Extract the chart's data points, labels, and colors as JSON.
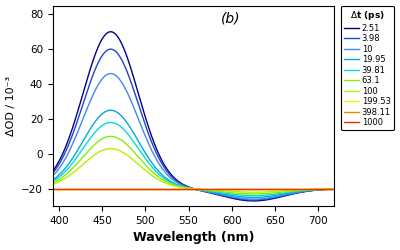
{
  "title": "(b)",
  "xlabel": "Wavelength (nm)",
  "ylabel": "ΔOD / 10⁻³",
  "xlim": [
    393,
    718
  ],
  "ylim": [
    -30,
    85
  ],
  "yticks": [
    -20,
    0,
    20,
    40,
    60,
    80
  ],
  "xticks": [
    400,
    450,
    500,
    550,
    600,
    650,
    700
  ],
  "background_color": "#ffffff",
  "legend_title": "Δt (ps)",
  "times": [
    2.51,
    3.98,
    10,
    19.95,
    39.81,
    63.1,
    100,
    199.53,
    398.11,
    1000
  ],
  "colors": [
    "#00008B",
    "#2244CC",
    "#4488EE",
    "#00AADD",
    "#00DDDD",
    "#88EE00",
    "#BBEE00",
    "#EEEE00",
    "#EE8800",
    "#EE3300"
  ],
  "baseline": -20,
  "peak_amplitudes_above_baseline": [
    90,
    80,
    66,
    45,
    38,
    30,
    23,
    0,
    0,
    0
  ],
  "trough_amplitudes_below_baseline": [
    -7,
    -6.5,
    -6,
    -5,
    -4,
    -3,
    -2,
    0,
    0,
    0
  ],
  "peak_wavelength": 460,
  "trough_wavelength": 625,
  "sigma_peak": 32,
  "sigma_trough": 35,
  "start_wavelength": 393,
  "end_wavelength": 718
}
